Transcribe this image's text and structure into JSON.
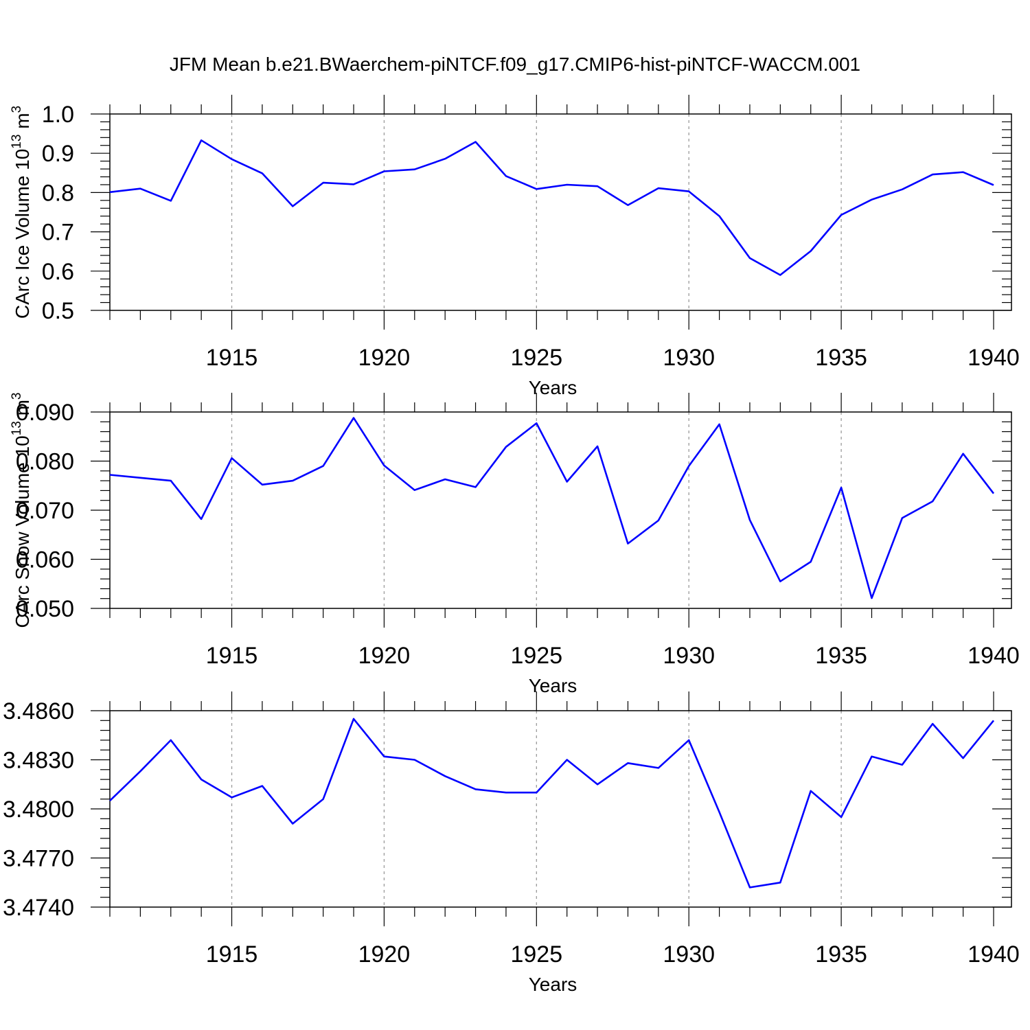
{
  "title": "JFM Mean b.e21.BWaerchem-piNTCF.f09_g17.CMIP6-hist-piNTCF-WACCM.001",
  "series_color": "#0000ff",
  "chart_data": [
    {
      "type": "line",
      "ylabel": "CArc Ice Volume 10",
      "ylabel_sup": "13",
      "ylabel_unit": " m",
      "ylabel_unit_sup": "3",
      "xlabel": "Years",
      "xlim": [
        1911,
        1940
      ],
      "ylim": [
        0.5,
        1.0
      ],
      "y_major_ticks": [
        0.5,
        0.6,
        0.7,
        0.8,
        0.9,
        1.0
      ],
      "y_tick_labels": [
        "0.5",
        "0.6",
        "0.7",
        "0.8",
        "0.9",
        "1.0"
      ],
      "x_major_ticks": [
        1915,
        1920,
        1925,
        1930,
        1935,
        1940
      ],
      "x_tick_labels": [
        "1915",
        "1920",
        "1925",
        "1930",
        "1935",
        "1940"
      ],
      "grid": "vertical dashed at major x ticks",
      "x": [
        1911,
        1912,
        1913,
        1914,
        1915,
        1916,
        1917,
        1918,
        1919,
        1920,
        1921,
        1922,
        1923,
        1924,
        1925,
        1926,
        1927,
        1928,
        1929,
        1930,
        1931,
        1932,
        1933,
        1934,
        1935,
        1936,
        1937,
        1938,
        1939,
        1940
      ],
      "y": [
        0.801,
        0.81,
        0.779,
        0.933,
        0.885,
        0.849,
        0.765,
        0.825,
        0.821,
        0.854,
        0.859,
        0.886,
        0.929,
        0.842,
        0.809,
        0.82,
        0.816,
        0.768,
        0.811,
        0.803,
        0.74,
        0.633,
        0.59,
        0.651,
        0.743,
        0.782,
        0.808,
        0.846,
        0.852,
        0.819
      ]
    },
    {
      "type": "line",
      "ylabel": "CArc Snow Volume 10",
      "ylabel_sup": "13",
      "ylabel_unit": " m",
      "ylabel_unit_sup": "3",
      "xlabel": "Years",
      "xlim": [
        1911,
        1940
      ],
      "ylim": [
        0.05,
        0.09
      ],
      "y_major_ticks": [
        0.05,
        0.06,
        0.07,
        0.08,
        0.09
      ],
      "y_tick_labels": [
        "0.050",
        "0.060",
        "0.070",
        "0.080",
        "0.090"
      ],
      "x_major_ticks": [
        1915,
        1920,
        1925,
        1930,
        1935,
        1940
      ],
      "x_tick_labels": [
        "1915",
        "1920",
        "1925",
        "1930",
        "1935",
        "1940"
      ],
      "grid": "vertical dashed at major x ticks",
      "x": [
        1911,
        1912,
        1913,
        1914,
        1915,
        1916,
        1917,
        1918,
        1919,
        1920,
        1921,
        1922,
        1923,
        1924,
        1925,
        1926,
        1927,
        1928,
        1929,
        1930,
        1931,
        1932,
        1933,
        1934,
        1935,
        1936,
        1937,
        1938,
        1939,
        1940
      ],
      "y": [
        0.0772,
        0.0766,
        0.076,
        0.0682,
        0.0806,
        0.0752,
        0.076,
        0.079,
        0.0888,
        0.0791,
        0.0741,
        0.0763,
        0.0747,
        0.0829,
        0.0877,
        0.0758,
        0.083,
        0.0632,
        0.0679,
        0.079,
        0.0875,
        0.068,
        0.0555,
        0.0595,
        0.0746,
        0.0521,
        0.0684,
        0.0718,
        0.0815,
        0.0734
      ]
    },
    {
      "type": "line",
      "ylabel": "",
      "xlabel": "Years",
      "xlim": [
        1911,
        1940
      ],
      "ylim": [
        3.474,
        3.486
      ],
      "y_major_ticks": [
        3.474,
        3.477,
        3.48,
        3.483,
        3.486
      ],
      "y_tick_labels": [
        "3.4740",
        "3.4770",
        "3.4800",
        "3.4830",
        "3.4860"
      ],
      "x_major_ticks": [
        1915,
        1920,
        1925,
        1930,
        1935,
        1940
      ],
      "x_tick_labels": [
        "1915",
        "1920",
        "1925",
        "1930",
        "1935",
        "1940"
      ],
      "grid": "vertical dashed at major x ticks",
      "x": [
        1911,
        1912,
        1913,
        1914,
        1915,
        1916,
        1917,
        1918,
        1919,
        1920,
        1921,
        1922,
        1923,
        1924,
        1925,
        1926,
        1927,
        1928,
        1929,
        1930,
        1931,
        1932,
        1933,
        1934,
        1935,
        1936,
        1937,
        1938,
        1939,
        1940
      ],
      "y": [
        3.4805,
        3.4823,
        3.4842,
        3.4818,
        3.4807,
        3.4814,
        3.4791,
        3.4806,
        3.4855,
        3.4832,
        3.483,
        3.482,
        3.4812,
        3.481,
        3.481,
        3.483,
        3.4815,
        3.4828,
        3.4825,
        3.4842,
        3.4798,
        3.4752,
        3.4755,
        3.4811,
        3.4795,
        3.4832,
        3.4827,
        3.4852,
        3.4831,
        3.4854
      ]
    }
  ]
}
